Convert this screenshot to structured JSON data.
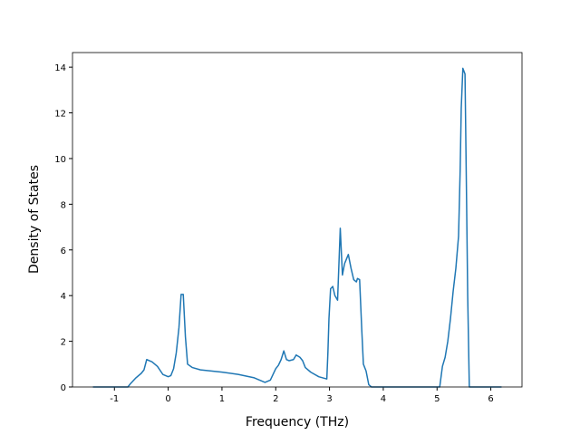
{
  "chart_data": {
    "type": "line",
    "xlabel": "Frequency (THz)",
    "ylabel": "Density of States",
    "xlim": [
      -1.78,
      6.58
    ],
    "ylim": [
      0,
      14.64
    ],
    "xticks": [
      -1,
      0,
      1,
      2,
      3,
      4,
      5,
      6
    ],
    "yticks": [
      0,
      2,
      4,
      6,
      8,
      10,
      12,
      14
    ],
    "series": [
      {
        "color": "#1f77b4",
        "x": [
          -1.4,
          -0.75,
          -0.7,
          -0.6,
          -0.5,
          -0.45,
          -0.4,
          -0.3,
          -0.2,
          -0.1,
          0,
          0.05,
          0.1,
          0.15,
          0.2,
          0.24,
          0.28,
          0.32,
          0.36,
          0.45,
          0.6,
          1.0,
          1.3,
          1.6,
          1.7,
          1.8,
          1.9,
          2.0,
          2.05,
          2.1,
          2.15,
          2.2,
          2.25,
          2.33,
          2.38,
          2.45,
          2.5,
          2.55,
          2.65,
          2.8,
          2.95,
          2.97,
          2.99,
          3.02,
          3.06,
          3.1,
          3.15,
          3.2,
          3.24,
          3.28,
          3.35,
          3.4,
          3.45,
          3.5,
          3.52,
          3.56,
          3.6,
          3.63,
          3.68,
          3.73,
          3.78,
          5.05,
          5.1,
          5.15,
          5.2,
          5.25,
          5.3,
          5.35,
          5.4,
          5.43,
          5.45,
          5.48,
          5.52,
          5.55,
          5.57,
          5.6,
          6.2
        ],
        "values": [
          0,
          0,
          0.15,
          0.4,
          0.6,
          0.75,
          1.2,
          1.1,
          0.9,
          0.55,
          0.45,
          0.5,
          0.8,
          1.5,
          2.6,
          4.05,
          4.05,
          2.2,
          1.0,
          0.85,
          0.75,
          0.65,
          0.55,
          0.4,
          0.3,
          0.2,
          0.3,
          0.8,
          0.95,
          1.2,
          1.58,
          1.2,
          1.15,
          1.2,
          1.4,
          1.3,
          1.15,
          0.85,
          0.65,
          0.45,
          0.35,
          1.5,
          3.0,
          4.3,
          4.4,
          4.0,
          3.8,
          6.95,
          4.9,
          5.4,
          5.8,
          5.2,
          4.7,
          4.6,
          4.75,
          4.7,
          2.5,
          1.0,
          0.7,
          0.1,
          0,
          0,
          0.9,
          1.3,
          2.0,
          3.0,
          4.2,
          5.2,
          6.6,
          9.5,
          12.2,
          13.95,
          13.7,
          8,
          4,
          0,
          0
        ]
      }
    ]
  }
}
